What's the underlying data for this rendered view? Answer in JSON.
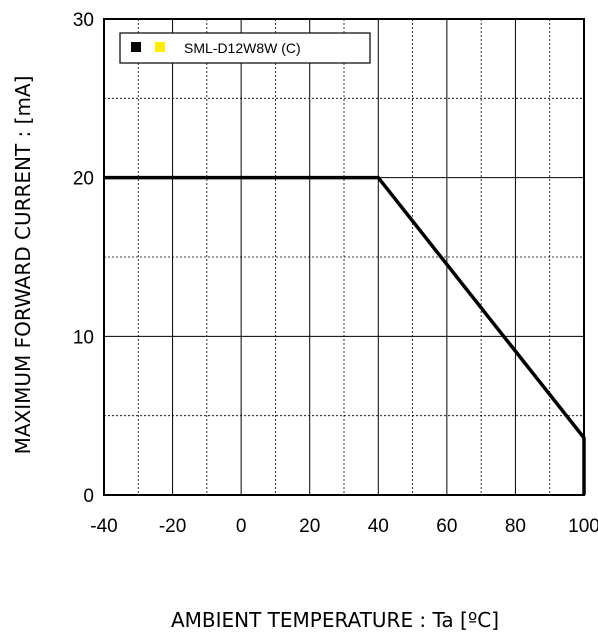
{
  "chart_data": {
    "type": "line",
    "title": "",
    "xlabel": "AMBIENT TEMPERATURE : Ta [ºC]",
    "ylabel": "MAXIMUM FORWARD CURRENT :  [mA]",
    "xlim": [
      -40,
      100
    ],
    "ylim": [
      0,
      30
    ],
    "x_ticks": [
      -40,
      -20,
      0,
      20,
      40,
      60,
      80,
      100
    ],
    "y_ticks": [
      0,
      10,
      20,
      30
    ],
    "x_tick_labels": [
      "-40",
      "-20",
      "0",
      "20",
      "40",
      "60",
      "80",
      "100"
    ],
    "y_tick_labels": [
      "0",
      "10",
      "20",
      "30"
    ],
    "grid": true,
    "legend_position": "top-left",
    "legend_label": "SML-D12W8W (C)",
    "legend_colors": [
      "#000000",
      "#ffee00"
    ],
    "series": [
      {
        "name": "SML-D12W8W (C)",
        "color": "#000000",
        "x": [
          -40,
          40,
          100,
          100
        ],
        "y": [
          20,
          20,
          3.6,
          0
        ]
      }
    ]
  }
}
